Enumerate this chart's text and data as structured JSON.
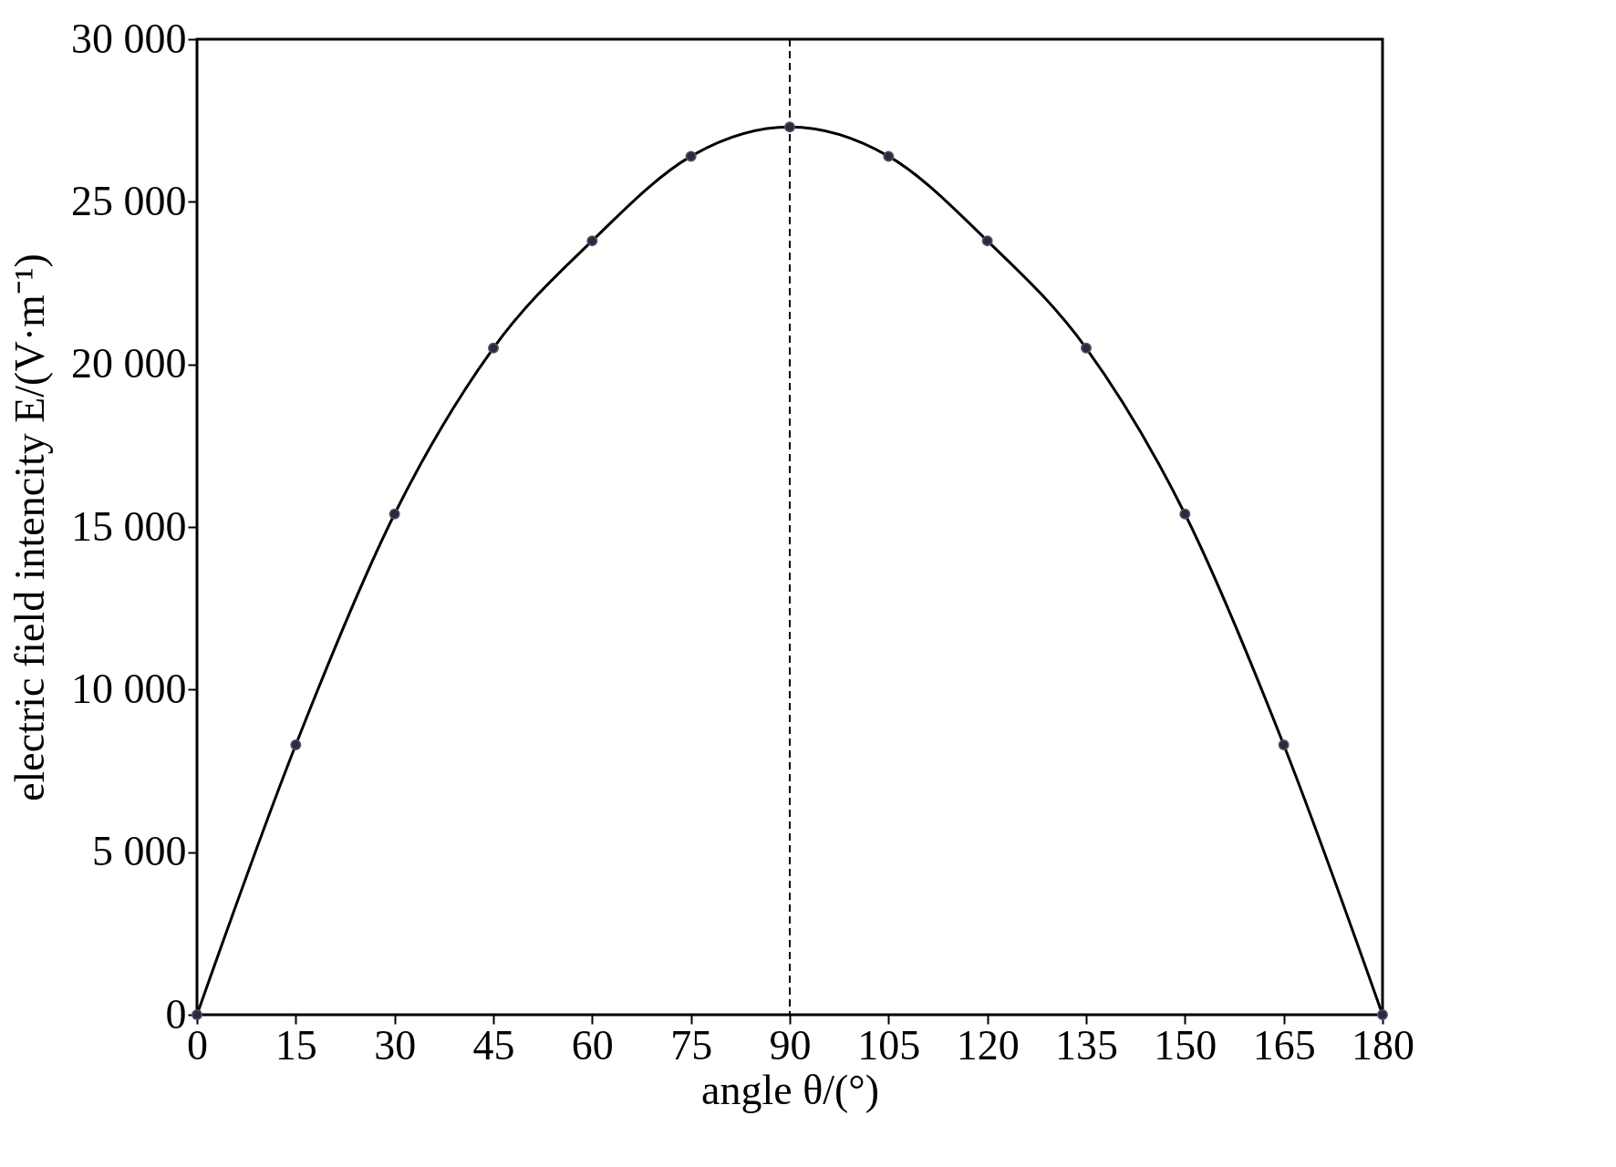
{
  "chart_data": {
    "type": "line",
    "xlabel": "angle θ/(°)",
    "ylabel": "electric field intencity E/(V·m⁻¹)",
    "x": [
      0,
      15,
      30,
      45,
      60,
      75,
      90,
      105,
      120,
      135,
      150,
      165,
      180
    ],
    "series": [
      {
        "color": "#000000",
        "values": [
          0,
          8300,
          15400,
          20500,
          23800,
          26400,
          27300,
          26400,
          23800,
          20500,
          15400,
          8300,
          0
        ]
      }
    ],
    "xlim": [
      0,
      180
    ],
    "xticks": [
      0,
      15,
      30,
      45,
      60,
      75,
      90,
      105,
      120,
      135,
      150,
      165,
      180
    ],
    "ylim": [
      0,
      30000
    ],
    "yticks": [
      0,
      {
        "value": 5000,
        "label": "5 000"
      },
      {
        "value": 10000,
        "label": "10 000"
      },
      {
        "value": 15000,
        "label": "15 000"
      },
      {
        "value": 20000,
        "label": "20 000"
      },
      {
        "value": 25000,
        "label": "25 000"
      },
      {
        "value": 30000,
        "label": "30 000"
      }
    ],
    "ref_lines": [
      {
        "axis": "x",
        "value": 90,
        "line_style": "dashed",
        "color": "#000000"
      }
    ],
    "marker": "circle",
    "line_style": "solid",
    "grid": false
  }
}
